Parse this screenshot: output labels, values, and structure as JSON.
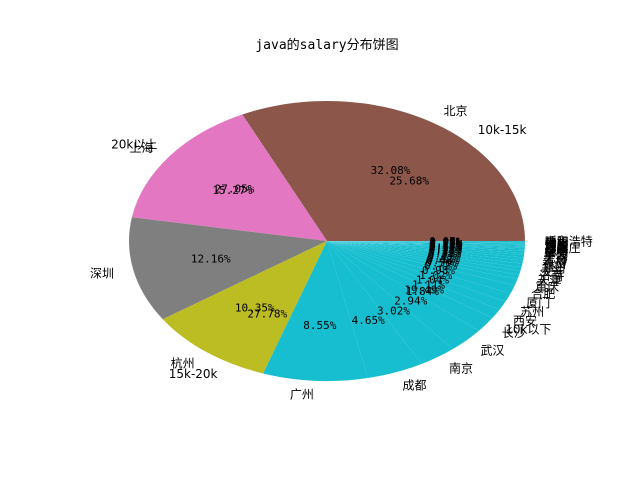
{
  "chart_data": {
    "type": "pie",
    "title": "java的salary分布饼图",
    "series": [
      {
        "name": "city",
        "labels": [
          "北京",
          "上海",
          "深圳",
          "杭州",
          "广州",
          "成都",
          "南京",
          "武汉",
          "长沙",
          "西安",
          "苏州",
          "厦门",
          "合肥",
          "重庆",
          "天津",
          "济南",
          "大连",
          "郑州",
          "福州",
          "青岛",
          "无锡",
          "宁波",
          "东莞",
          "昆明",
          "珠海",
          "石家庄",
          "沈阳",
          "太原",
          "南昌",
          "佛山",
          "贵阳",
          "中山",
          "呼和浩特"
        ],
        "percent_labels": [
          "32.08%",
          "15.27%",
          "12.16%",
          "10.35%",
          "8.55%",
          "4.65%",
          "3.02%",
          "2.94%",
          "1.84%",
          "1.11%",
          "1.04%",
          "1.02%",
          "0.98%",
          "0.72%",
          "0.50%",
          "0.48%",
          "0.42%",
          "0.41%",
          "0.38%",
          "0.33%",
          "0.28%",
          "0.25%",
          "0.22%",
          "0.18%",
          "0.15%",
          "0.13%",
          "0.12%",
          "0.11%",
          "0.10%",
          "0.10%",
          "0.09%",
          "0.08%",
          "0.07%"
        ],
        "values": [
          32.08,
          15.27,
          12.16,
          10.35,
          8.55,
          4.65,
          3.02,
          2.94,
          1.84,
          1.11,
          1.04,
          1.02,
          0.98,
          0.72,
          0.5,
          0.48,
          0.42,
          0.41,
          0.38,
          0.33,
          0.28,
          0.25,
          0.22,
          0.18,
          0.15,
          0.13,
          0.12,
          0.11,
          0.1,
          0.1,
          0.09,
          0.08,
          0.07
        ]
      },
      {
        "name": "salary",
        "labels": [
          "10k-15k",
          "20k以上",
          "15k-20k",
          "10k以下"
        ],
        "percent_labels": [
          "25.68%",
          "27.05%",
          "27.78%",
          "19.49%"
        ],
        "values": [
          25.68,
          27.05,
          27.78,
          19.49
        ]
      }
    ],
    "colors": [
      "#8c564b",
      "#e377c2",
      "#7f7f7f",
      "#bcbd22",
      "#17becf"
    ]
  }
}
